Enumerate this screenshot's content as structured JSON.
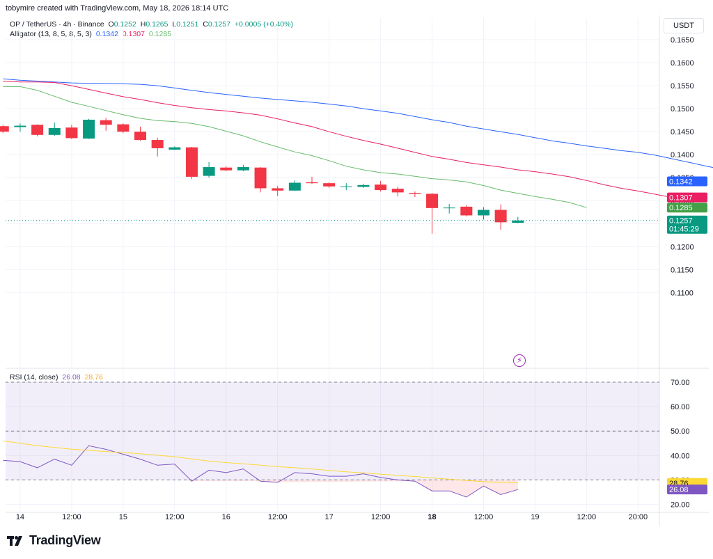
{
  "header": {
    "credit": "tobymire created with TradingView.com, May 18, 2026 18:14 UTC"
  },
  "symbol": {
    "title": "OP / TetherUS · 4h · Binance",
    "o_label": "O",
    "o": "0.1252",
    "h_label": "H",
    "h": "0.1265",
    "l_label": "L",
    "l": "0.1251",
    "c_label": "C",
    "c": "0.1257",
    "change": "+0.0005 (+0.40%)"
  },
  "alligator": {
    "label": "Alligator (13, 8, 5, 8, 5, 3)",
    "jaw": "0.1342",
    "teeth": "0.1307",
    "lips": "0.1285"
  },
  "rsi": {
    "label": "RSI (14, close)",
    "value": "26.08",
    "ma": "28.76"
  },
  "currency": "USDT",
  "countdown": "01:45:29",
  "logo_text": "TradingView",
  "colors": {
    "up": "#089981",
    "down": "#f23645",
    "jaw": "#2962ff",
    "teeth": "#e91e63",
    "lips": "#66bb6a",
    "rsi": "#7e57c2",
    "rsi_ma": "#fdd835",
    "grid": "#f0f3fa"
  },
  "chart_data": [
    {
      "type": "candlestick",
      "title": "OP / TetherUS · 4h · Binance",
      "y_axis": {
        "ticks": [
          "0.1650",
          "0.1600",
          "0.1550",
          "0.1500",
          "0.1450",
          "0.1400",
          "0.1350",
          "0.1300",
          "0.1250",
          "0.1200",
          "0.1150",
          "0.1100"
        ],
        "range": [
          0.1085,
          0.1685
        ]
      },
      "x_axis": {
        "ticks": [
          "14",
          "12:00",
          "15",
          "12:00",
          "16",
          "12:00",
          "17",
          "12:00",
          "18",
          "12:00",
          "19",
          "12:00",
          "20:00"
        ],
        "tick_bar_index": [
          1,
          4,
          7,
          10,
          13,
          16,
          19,
          22,
          25,
          28,
          31,
          34,
          37
        ],
        "bold": [
          "18"
        ]
      },
      "candles": [
        {
          "o": 0.1462,
          "h": 0.1465,
          "l": 0.1447,
          "c": 0.145
        },
        {
          "o": 0.146,
          "h": 0.1468,
          "l": 0.145,
          "c": 0.1463
        },
        {
          "o": 0.1465,
          "h": 0.1466,
          "l": 0.144,
          "c": 0.1443
        },
        {
          "o": 0.1443,
          "h": 0.147,
          "l": 0.1441,
          "c": 0.1458
        },
        {
          "o": 0.1459,
          "h": 0.1465,
          "l": 0.1434,
          "c": 0.1436
        },
        {
          "o": 0.1435,
          "h": 0.1478,
          "l": 0.1434,
          "c": 0.1476
        },
        {
          "o": 0.1475,
          "h": 0.148,
          "l": 0.1452,
          "c": 0.1465
        },
        {
          "o": 0.1466,
          "h": 0.1468,
          "l": 0.1447,
          "c": 0.145
        },
        {
          "o": 0.145,
          "h": 0.1461,
          "l": 0.143,
          "c": 0.1432
        },
        {
          "o": 0.1432,
          "h": 0.1437,
          "l": 0.1396,
          "c": 0.1414
        },
        {
          "o": 0.1411,
          "h": 0.1418,
          "l": 0.141,
          "c": 0.1416
        },
        {
          "o": 0.1416,
          "h": 0.1417,
          "l": 0.1347,
          "c": 0.1352
        },
        {
          "o": 0.1354,
          "h": 0.1384,
          "l": 0.135,
          "c": 0.1373
        },
        {
          "o": 0.1372,
          "h": 0.1375,
          "l": 0.1364,
          "c": 0.1366
        },
        {
          "o": 0.1366,
          "h": 0.1378,
          "l": 0.1364,
          "c": 0.1373
        },
        {
          "o": 0.1372,
          "h": 0.1373,
          "l": 0.1318,
          "c": 0.1327
        },
        {
          "o": 0.1327,
          "h": 0.1332,
          "l": 0.131,
          "c": 0.1322
        },
        {
          "o": 0.1322,
          "h": 0.1344,
          "l": 0.1321,
          "c": 0.1339
        },
        {
          "o": 0.134,
          "h": 0.1352,
          "l": 0.1336,
          "c": 0.1338
        },
        {
          "o": 0.1338,
          "h": 0.134,
          "l": 0.1328,
          "c": 0.1331
        },
        {
          "o": 0.133,
          "h": 0.1338,
          "l": 0.1323,
          "c": 0.1331
        },
        {
          "o": 0.133,
          "h": 0.1337,
          "l": 0.1328,
          "c": 0.1334
        },
        {
          "o": 0.1335,
          "h": 0.1343,
          "l": 0.132,
          "c": 0.1323
        },
        {
          "o": 0.1326,
          "h": 0.133,
          "l": 0.1309,
          "c": 0.1318
        },
        {
          "o": 0.1317,
          "h": 0.132,
          "l": 0.1308,
          "c": 0.1315
        },
        {
          "o": 0.1315,
          "h": 0.1317,
          "l": 0.1228,
          "c": 0.1284
        },
        {
          "o": 0.1284,
          "h": 0.1293,
          "l": 0.1272,
          "c": 0.1285
        },
        {
          "o": 0.1287,
          "h": 0.129,
          "l": 0.1266,
          "c": 0.1268
        },
        {
          "o": 0.1268,
          "h": 0.1286,
          "l": 0.1259,
          "c": 0.128
        },
        {
          "o": 0.128,
          "h": 0.1292,
          "l": 0.1237,
          "c": 0.1253
        },
        {
          "o": 0.1252,
          "h": 0.1265,
          "l": 0.1251,
          "c": 0.1257
        }
      ],
      "alligator": {
        "jaw": {
          "name": "jaw",
          "start_bar": 0,
          "values": [
            0.1565,
            0.1562,
            0.156,
            0.1558,
            0.1556,
            0.1555,
            0.1555,
            0.1554,
            0.1553,
            0.155,
            0.1545,
            0.154,
            0.1535,
            0.1531,
            0.1527,
            0.1523,
            0.152,
            0.1517,
            0.1514,
            0.151,
            0.1506,
            0.15,
            0.1495,
            0.149,
            0.1483,
            0.1476,
            0.147,
            0.1462,
            0.1456,
            0.145,
            0.1444,
            0.1437,
            0.143,
            0.1425,
            0.1419,
            0.1414,
            0.1409,
            0.1405,
            0.1399,
            0.1391,
            0.1383,
            0.1375,
            0.1367,
            0.1359,
            0.135,
            0.1342
          ]
        },
        "teeth": {
          "name": "teeth",
          "start_bar": 0,
          "values": [
            0.156,
            0.1558,
            0.1558,
            0.1557,
            0.155,
            0.1542,
            0.1534,
            0.1526,
            0.152,
            0.1513,
            0.1507,
            0.1502,
            0.1498,
            0.1495,
            0.1491,
            0.1486,
            0.1478,
            0.1469,
            0.1461,
            0.145,
            0.144,
            0.1431,
            0.1423,
            0.1414,
            0.1405,
            0.1396,
            0.139,
            0.1383,
            0.1378,
            0.1373,
            0.1367,
            0.1363,
            0.1358,
            0.1352,
            0.1344,
            0.1335,
            0.1327,
            0.1321,
            0.1314,
            0.1307
          ]
        },
        "lips": {
          "name": "lips",
          "start_bar": 0,
          "values": [
            0.1548,
            0.1548,
            0.154,
            0.1527,
            0.1514,
            0.1505,
            0.1496,
            0.1487,
            0.1479,
            0.1474,
            0.1472,
            0.1468,
            0.1461,
            0.1451,
            0.1441,
            0.1428,
            0.1417,
            0.1406,
            0.1398,
            0.1387,
            0.1375,
            0.1367,
            0.1361,
            0.1358,
            0.1353,
            0.1348,
            0.1345,
            0.1341,
            0.1333,
            0.1323,
            0.1316,
            0.1309,
            0.1303,
            0.1296,
            0.1285
          ]
        }
      }
    },
    {
      "type": "line",
      "title": "RSI (14, close)",
      "y_axis": {
        "ticks": [
          "70.00",
          "60.00",
          "50.00",
          "40.00",
          "30.00",
          "20.00"
        ],
        "range": [
          17,
          73
        ]
      },
      "bands": {
        "upper": 70,
        "middle": 50,
        "lower": 30
      },
      "series": [
        {
          "name": "RSI",
          "values": [
            38,
            37.5,
            35,
            38.5,
            36,
            44,
            42.5,
            40.5,
            38.5,
            36,
            36.5,
            29.5,
            34,
            33,
            34.5,
            29.5,
            29,
            33,
            32.5,
            31.5,
            31.5,
            32.5,
            31,
            30,
            29.5,
            25.5,
            25.5,
            23,
            27.5,
            24,
            26.08
          ]
        },
        {
          "name": "RSI-based MA",
          "values": [
            46,
            45,
            44,
            43.3,
            42.6,
            42.1,
            41.6,
            41.2,
            40.7,
            40.1,
            39.5,
            38.6,
            37.7,
            37.1,
            36.6,
            36,
            35.4,
            35,
            34.5,
            33.9,
            33.3,
            32.9,
            32.3,
            31.9,
            31.4,
            30.8,
            30.3,
            29.8,
            29.3,
            29,
            28.76
          ]
        }
      ]
    }
  ]
}
